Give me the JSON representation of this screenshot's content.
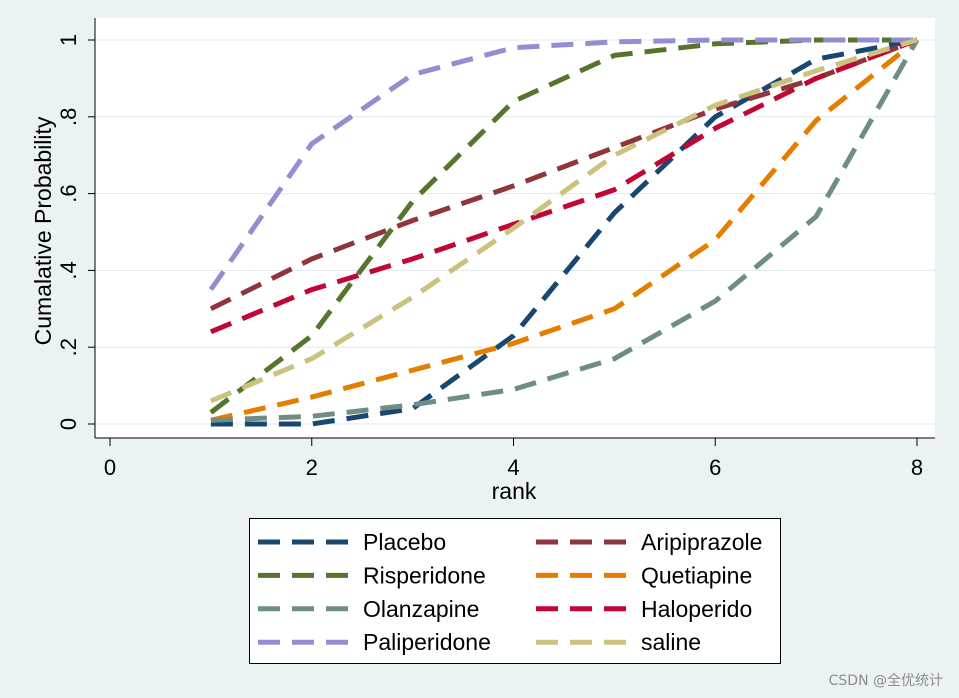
{
  "colors": {
    "background": "#EAF2F3",
    "plot_background": "#FFFFFF",
    "grid": "#E1E8EC",
    "axis": "#000000",
    "legend_border": "#000000"
  },
  "chart_data": {
    "type": "line",
    "xlabel": "rank",
    "ylabel": "Cumalative Probability",
    "xlim": [
      0,
      8
    ],
    "ylim": [
      0,
      1
    ],
    "x_ticks": [
      0,
      2,
      4,
      6,
      8
    ],
    "x_tick_labels": [
      "0",
      "2",
      "4",
      "6",
      "8"
    ],
    "y_ticks": [
      0,
      0.2,
      0.4,
      0.6,
      0.8,
      1
    ],
    "y_tick_labels": [
      "0",
      ".2",
      ".4",
      ".6",
      ".8",
      "1"
    ],
    "grid": true,
    "legend_position": "bottom",
    "x": [
      1,
      2,
      3,
      4,
      5,
      6,
      7,
      8
    ],
    "series": [
      {
        "name": "Placebo",
        "color": "#1A476F",
        "values": [
          0.0,
          0.0,
          0.04,
          0.23,
          0.55,
          0.8,
          0.95,
          1.0
        ]
      },
      {
        "name": "Aripiprazole",
        "color": "#90353B",
        "values": [
          0.3,
          0.43,
          0.53,
          0.62,
          0.72,
          0.82,
          0.9,
          1.0
        ]
      },
      {
        "name": "Risperidone",
        "color": "#55752F",
        "values": [
          0.03,
          0.23,
          0.58,
          0.84,
          0.96,
          0.99,
          1.0,
          1.0
        ]
      },
      {
        "name": "Quetiapine",
        "color": "#E37E00",
        "values": [
          0.01,
          0.07,
          0.14,
          0.21,
          0.3,
          0.48,
          0.79,
          1.0
        ]
      },
      {
        "name": "Olanzapine",
        "color": "#6E8E84",
        "values": [
          0.01,
          0.02,
          0.05,
          0.09,
          0.17,
          0.32,
          0.54,
          1.0
        ]
      },
      {
        "name": "Haloperido",
        "color": "#C10534",
        "values": [
          0.24,
          0.35,
          0.43,
          0.52,
          0.61,
          0.77,
          0.9,
          1.0
        ]
      },
      {
        "name": "Paliperidone",
        "color": "#938DD2",
        "values": [
          0.35,
          0.73,
          0.91,
          0.98,
          0.995,
          1.0,
          1.0,
          1.0
        ]
      },
      {
        "name": "saline",
        "color": "#CAC27E",
        "values": [
          0.06,
          0.17,
          0.33,
          0.51,
          0.7,
          0.83,
          0.92,
          1.0
        ]
      }
    ]
  },
  "watermark": "CSDN @全优统计"
}
